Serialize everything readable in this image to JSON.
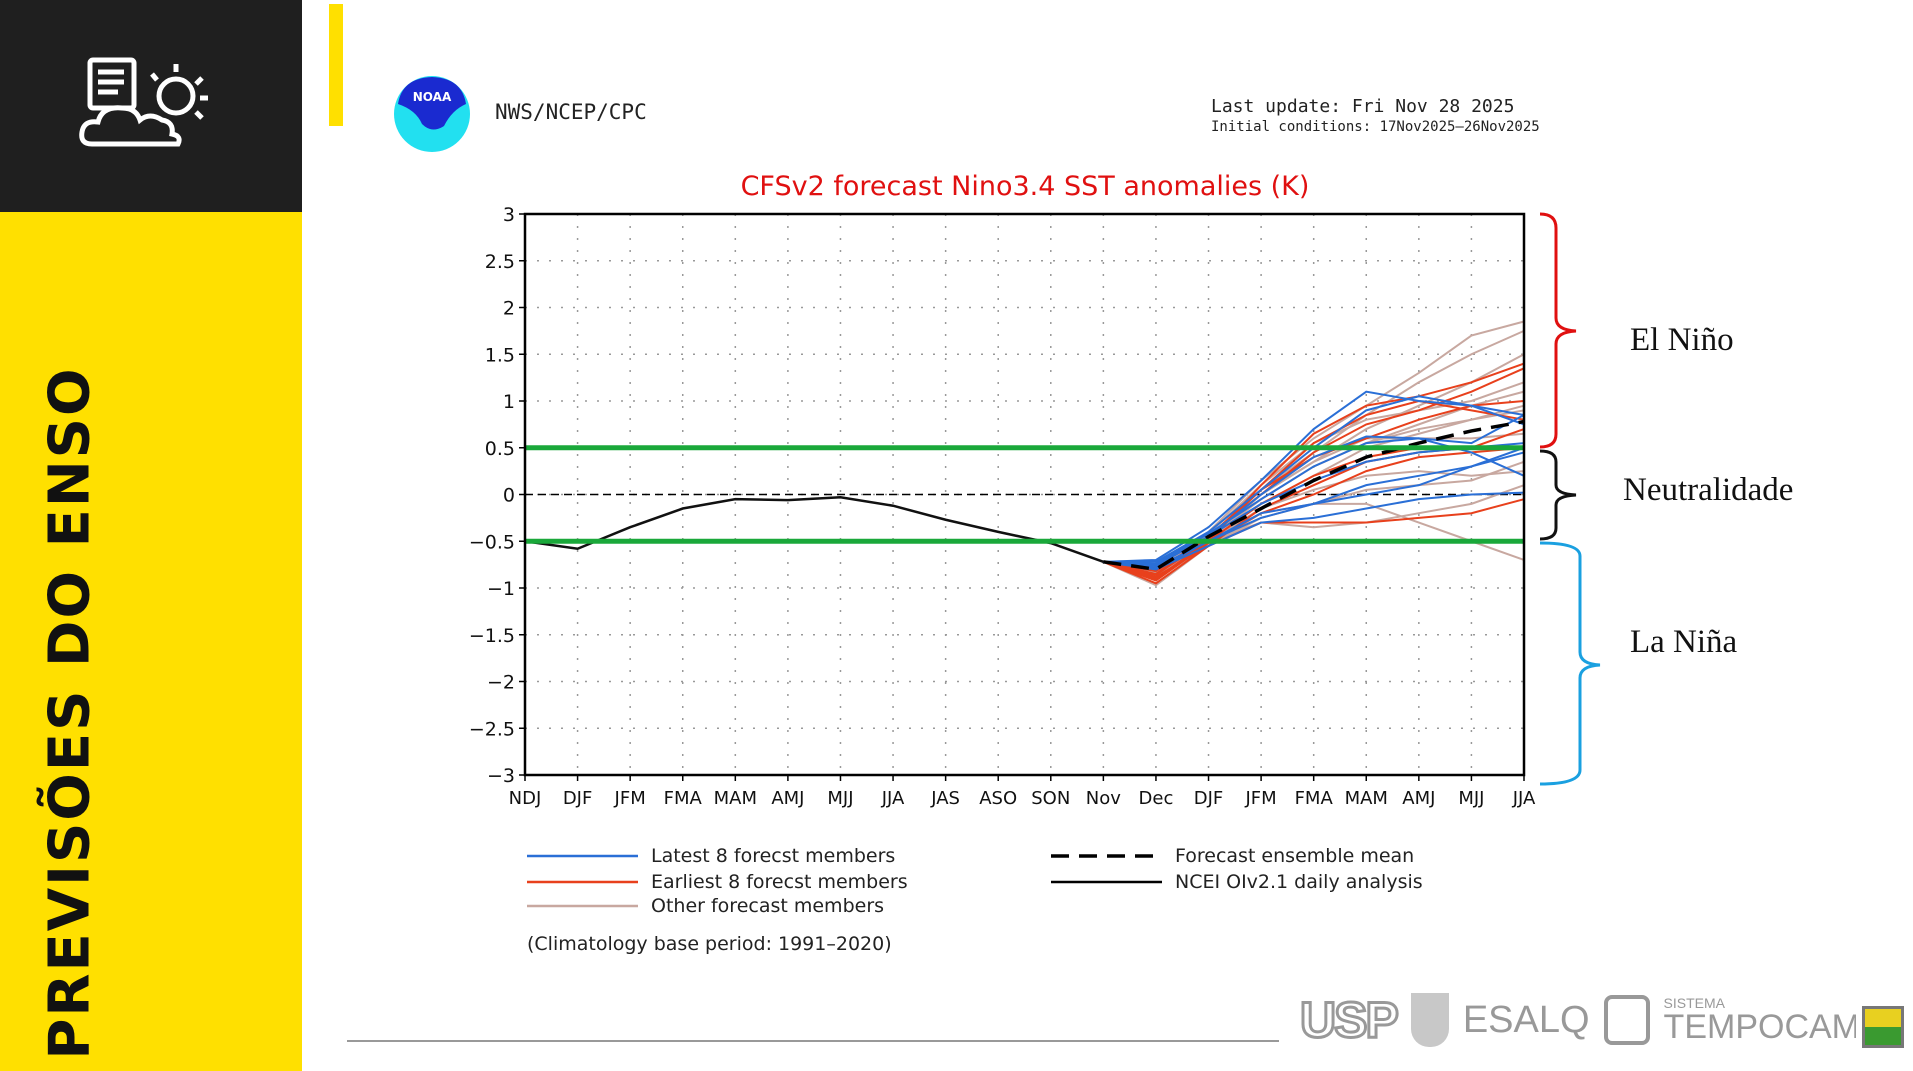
{
  "sidebar": {
    "title": "PREVISÕES DO ENSO",
    "icon": "weather-report-icon"
  },
  "header": {
    "agency": "NWS/NCEP/CPC",
    "last_update": "Last update: Fri Nov 28 2025",
    "initial_conditions": "Initial conditions: 17Nov2025–26Nov2025",
    "logo_text": "NOAA"
  },
  "annotations": {
    "el_nino": "El Niño",
    "neutral": "Neutralidade",
    "la_nina": "La Niña"
  },
  "colors": {
    "latest": "#2a6fd6",
    "earliest": "#e8401c",
    "other": "#c8a8a0",
    "threshold": "#1aa83a",
    "el_nino_bracket": "#e01010",
    "la_nina_bracket": "#1aa0e0",
    "sidebar": "#ffe000",
    "title": "#e01010"
  },
  "footer": {
    "logos": [
      "USP",
      "ESALQ",
      "SISTEMA",
      "TEMPOCAMPO"
    ]
  },
  "chart_data": {
    "type": "line",
    "title": "CFSv2 forecast Nino3.4 SST anomalies (K)",
    "categories": [
      "NDJ",
      "DJF",
      "JFM",
      "FMA",
      "MAM",
      "AMJ",
      "MJJ",
      "JJA",
      "JAS",
      "ASO",
      "SON",
      "Nov",
      "Dec",
      "DJF",
      "JFM",
      "FMA",
      "MAM",
      "AMJ",
      "MJJ",
      "JJA"
    ],
    "ylim": [
      -3,
      3
    ],
    "yticks": [
      "3",
      "2.5",
      "2",
      "1.5",
      "1",
      "0.5",
      "0",
      "−0.5",
      "−1",
      "−1.5",
      "−2",
      "−2.5",
      "−3"
    ],
    "grid": true,
    "thresholds": [
      0.5,
      -0.5
    ],
    "observed": {
      "name": "NCEI OIv2.1 daily analysis",
      "values": [
        -0.5,
        -0.58,
        -0.35,
        -0.15,
        -0.05,
        -0.06,
        -0.03,
        -0.12,
        -0.27,
        -0.4,
        -0.52,
        -0.72
      ]
    },
    "ensemble_mean": {
      "name": "Forecast ensemble mean",
      "start_index": 11,
      "values": [
        -0.72,
        -0.8,
        -0.45,
        -0.15,
        0.15,
        0.4,
        0.55,
        0.68,
        0.78
      ]
    },
    "members_start_index": 11,
    "latest": {
      "name": "Latest 8 forecst members",
      "series": [
        [
          -0.72,
          -0.7,
          -0.35,
          0.15,
          0.7,
          1.1,
          1.0,
          0.95,
          0.85
        ],
        [
          -0.72,
          -0.75,
          -0.45,
          0.0,
          0.4,
          0.62,
          0.6,
          0.45,
          0.2
        ],
        [
          -0.72,
          -0.78,
          -0.5,
          -0.2,
          -0.1,
          0.0,
          0.1,
          0.3,
          0.45
        ],
        [
          -0.72,
          -0.8,
          -0.55,
          -0.3,
          -0.25,
          -0.15,
          -0.05,
          0.0,
          0.02
        ],
        [
          -0.72,
          -0.72,
          -0.4,
          0.05,
          0.5,
          0.9,
          1.05,
          0.95,
          0.75
        ],
        [
          -0.72,
          -0.76,
          -0.45,
          -0.1,
          0.15,
          0.35,
          0.45,
          0.5,
          0.55
        ],
        [
          -0.72,
          -0.8,
          -0.5,
          -0.25,
          -0.1,
          0.1,
          0.2,
          0.3,
          0.5
        ],
        [
          -0.72,
          -0.74,
          -0.42,
          -0.05,
          0.3,
          0.55,
          0.6,
          0.55,
          0.85
        ]
      ]
    },
    "earliest": {
      "name": "Earliest 8 forecst members",
      "series": [
        [
          -0.72,
          -0.9,
          -0.5,
          0.1,
          0.65,
          0.95,
          1.05,
          1.2,
          1.4
        ],
        [
          -0.72,
          -0.85,
          -0.45,
          0.05,
          0.55,
          0.85,
          1.0,
          0.9,
          0.8
        ],
        [
          -0.72,
          -0.88,
          -0.55,
          -0.15,
          0.1,
          0.35,
          0.45,
          0.5,
          0.5
        ],
        [
          -0.72,
          -0.95,
          -0.55,
          -0.3,
          -0.3,
          -0.3,
          -0.25,
          -0.2,
          -0.05
        ],
        [
          -0.72,
          -0.82,
          -0.45,
          0.0,
          0.45,
          0.75,
          0.9,
          1.1,
          1.35
        ],
        [
          -0.72,
          -0.9,
          -0.5,
          -0.1,
          0.2,
          0.4,
          0.5,
          0.5,
          0.7
        ],
        [
          -0.72,
          -0.92,
          -0.52,
          -0.2,
          0.0,
          0.25,
          0.4,
          0.45,
          0.5
        ],
        [
          -0.72,
          -0.86,
          -0.48,
          0.05,
          0.4,
          0.6,
          0.8,
          0.95,
          1.0
        ]
      ]
    },
    "other": {
      "name": "Other forecast members",
      "series": [
        [
          -0.72,
          -0.78,
          -0.4,
          0.15,
          0.6,
          0.95,
          1.3,
          1.7,
          1.85
        ],
        [
          -0.72,
          -0.82,
          -0.45,
          0.05,
          0.45,
          0.85,
          1.2,
          1.5,
          1.75
        ],
        [
          -0.72,
          -0.85,
          -0.5,
          0.0,
          0.35,
          0.7,
          0.95,
          1.2,
          1.5
        ],
        [
          -0.72,
          -0.8,
          -0.45,
          -0.05,
          0.3,
          0.55,
          0.75,
          0.95,
          1.1
        ],
        [
          -0.72,
          -0.9,
          -0.55,
          -0.2,
          -0.1,
          -0.1,
          -0.3,
          -0.5,
          -0.7
        ],
        [
          -0.72,
          -0.88,
          -0.5,
          -0.15,
          0.05,
          0.2,
          0.25,
          0.2,
          0.25
        ],
        [
          -0.72,
          -0.84,
          -0.48,
          -0.05,
          0.3,
          0.55,
          0.7,
          0.8,
          0.9
        ],
        [
          -0.72,
          -0.86,
          -0.5,
          -0.3,
          -0.35,
          -0.3,
          -0.2,
          -0.1,
          0.1
        ],
        [
          -0.72,
          -0.79,
          -0.42,
          0.1,
          0.55,
          0.8,
          0.9,
          1.0,
          1.2
        ],
        [
          -0.72,
          -0.83,
          -0.46,
          -0.1,
          0.2,
          0.5,
          0.65,
          0.8,
          0.95
        ],
        [
          -0.72,
          -0.97,
          -0.55,
          -0.25,
          -0.1,
          0.05,
          0.1,
          0.15,
          0.35
        ],
        [
          -0.72,
          -0.81,
          -0.44,
          0.0,
          0.35,
          0.6,
          0.6,
          0.6,
          0.65
        ]
      ]
    },
    "footnote": "(Climatology base period: 1991–2020)"
  }
}
